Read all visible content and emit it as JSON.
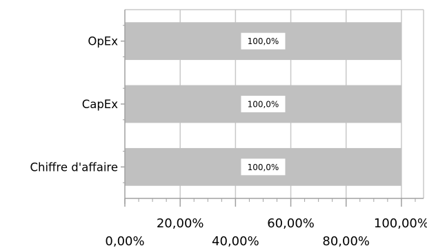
{
  "chart_data": {
    "type": "bar",
    "orientation": "horizontal",
    "categories": [
      "OpEx",
      "CapEx",
      "Chiffre d'affaire"
    ],
    "values": [
      100.0,
      100.0,
      100.0
    ],
    "data_labels": [
      "100,0%",
      "100,0%",
      "100,0%"
    ],
    "xlim": [
      0,
      108
    ],
    "x_ticks": [
      0,
      20,
      40,
      60,
      80,
      100
    ],
    "x_tick_labels": [
      "0,00%",
      "20,00%",
      "40,00%",
      "60,00%",
      "80,00%",
      "100,00%"
    ],
    "grid": true,
    "legend": "none",
    "title": "",
    "xlabel": "",
    "ylabel": "",
    "colors": {
      "bar": "#c0c0c0",
      "grid": "#c8c8c8",
      "axis": "#a0a0a0",
      "label_bg": "#ffffff"
    }
  }
}
